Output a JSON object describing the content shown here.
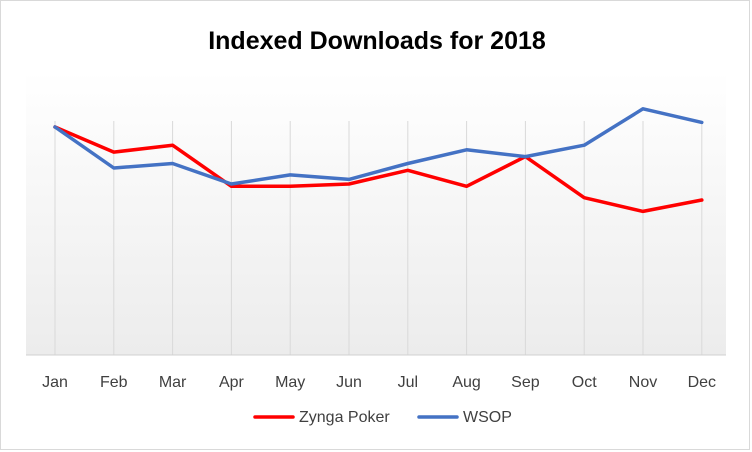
{
  "chart_data": {
    "type": "line",
    "title": "Indexed Downloads for 2018",
    "xlabel": "",
    "ylabel": "",
    "categories": [
      "Jan",
      "Feb",
      "Mar",
      "Apr",
      "May",
      "Jun",
      "Jul",
      "Aug",
      "Sep",
      "Oct",
      "Nov",
      "Dec"
    ],
    "ylim": [
      0,
      100
    ],
    "grid": "vertical",
    "legend": "bottom",
    "series": [
      {
        "name": "Zynga Poker",
        "color": "#ff0000",
        "values": [
          100,
          89,
          92,
          74,
          74,
          75,
          81,
          74,
          87,
          69,
          63,
          68
        ]
      },
      {
        "name": "WSOP",
        "color": "#4472c4",
        "values": [
          100,
          82,
          84,
          75,
          79,
          77,
          84,
          90,
          87,
          92,
          108,
          102
        ]
      }
    ]
  }
}
